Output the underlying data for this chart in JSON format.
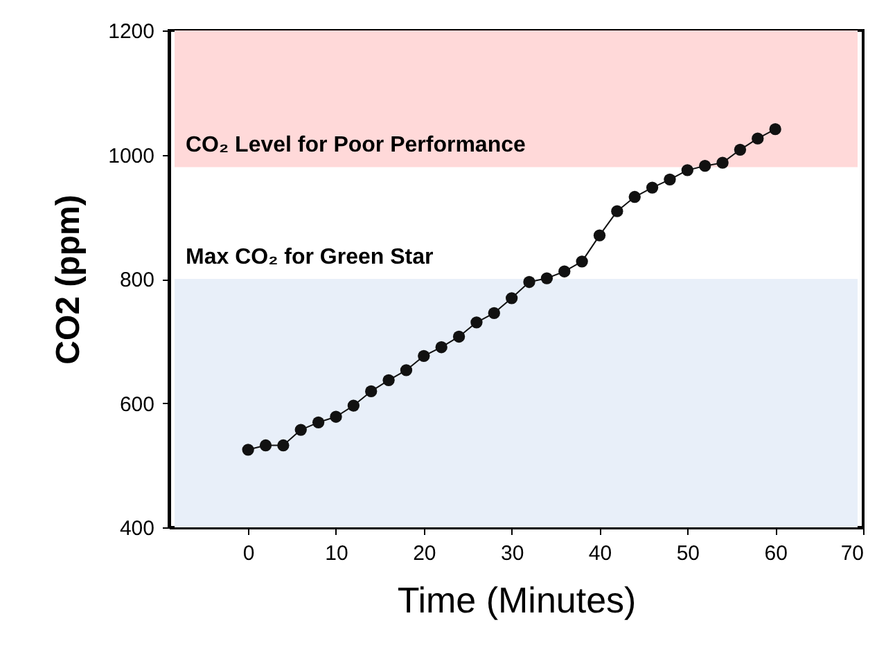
{
  "chart_data": {
    "type": "line",
    "xlabel": "Time (Minutes)",
    "ylabel": "CO2 (ppm)",
    "x": [
      0,
      2,
      4,
      6,
      8,
      10,
      12,
      14,
      16,
      18,
      20,
      22,
      24,
      26,
      28,
      30,
      32,
      34,
      36,
      38,
      40,
      42,
      44,
      46,
      48,
      50,
      52,
      54,
      56,
      58,
      60
    ],
    "series": [
      {
        "color": "#111111",
        "values": [
          525,
          532,
          532,
          557,
          569,
          578,
          596,
          619,
          637,
          653,
          676,
          690,
          707,
          730,
          745,
          769,
          795,
          801,
          812,
          828,
          870,
          909,
          932,
          947,
          960,
          975,
          982,
          987,
          1008,
          1026,
          1041
        ]
      }
    ],
    "xlim": [
      -9,
      70
    ],
    "xticks": [
      0,
      10,
      20,
      30,
      40,
      50,
      60,
      70
    ],
    "ylim": [
      400,
      1200
    ],
    "yticks": [
      400,
      600,
      800,
      1000,
      1200
    ],
    "bands": [
      {
        "axis": "y",
        "from": 980,
        "to": 1200,
        "label": "CO₂ Level for Poor Performance",
        "color": "#ffd9d9"
      },
      {
        "axis": "y",
        "from": 400,
        "to": 800,
        "label": "Max CO₂ for Green Star",
        "color": "#e8eff9"
      }
    ],
    "grid": false,
    "marker": "circle",
    "line_style": "solid"
  }
}
